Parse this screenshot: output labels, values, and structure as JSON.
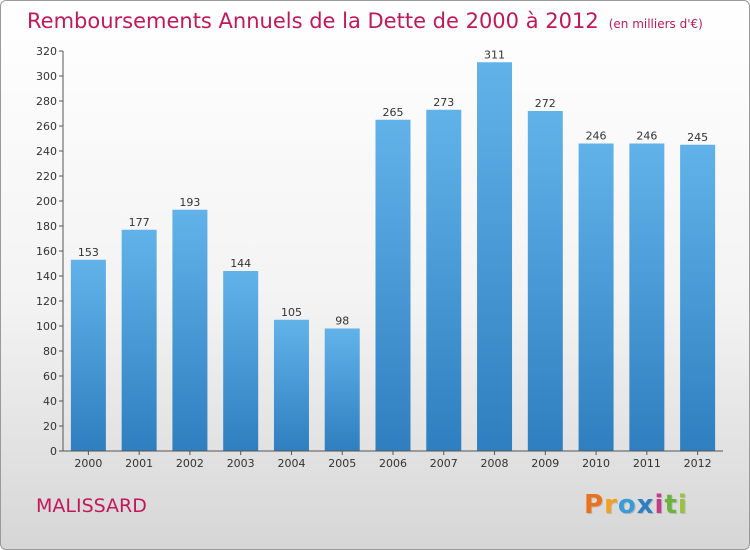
{
  "header": {
    "title": "Remboursements Annuels de la Dette de 2000 à 2012",
    "unit": "(en milliers d'€)"
  },
  "footer": {
    "commune": "MALISSARD",
    "logo_letters": [
      "P",
      "r",
      "o",
      "x",
      "i",
      "t",
      "i"
    ],
    "logo_colors": [
      "#e8731e",
      "#f2a01e",
      "#3a9bd8",
      "#2d7fc1",
      "#c43b8a",
      "#6cb33e",
      "#9bc23c"
    ]
  },
  "colors": {
    "title": "#c2185b",
    "bar_top": "#62b2ea",
    "bar_bottom": "#2f7fc0"
  },
  "chart_data": {
    "type": "bar",
    "title": "Remboursements Annuels de la Dette de 2000 à 2012",
    "xlabel": "",
    "ylabel": "",
    "categories": [
      "2000",
      "2001",
      "2002",
      "2003",
      "2004",
      "2005",
      "2006",
      "2007",
      "2008",
      "2009",
      "2010",
      "2011",
      "2012"
    ],
    "values": [
      153,
      177,
      193,
      144,
      105,
      98,
      265,
      273,
      311,
      272,
      246,
      246,
      245
    ],
    "ylim": [
      0,
      320
    ],
    "ytick_step": 20,
    "grid": false,
    "legend": "none"
  }
}
